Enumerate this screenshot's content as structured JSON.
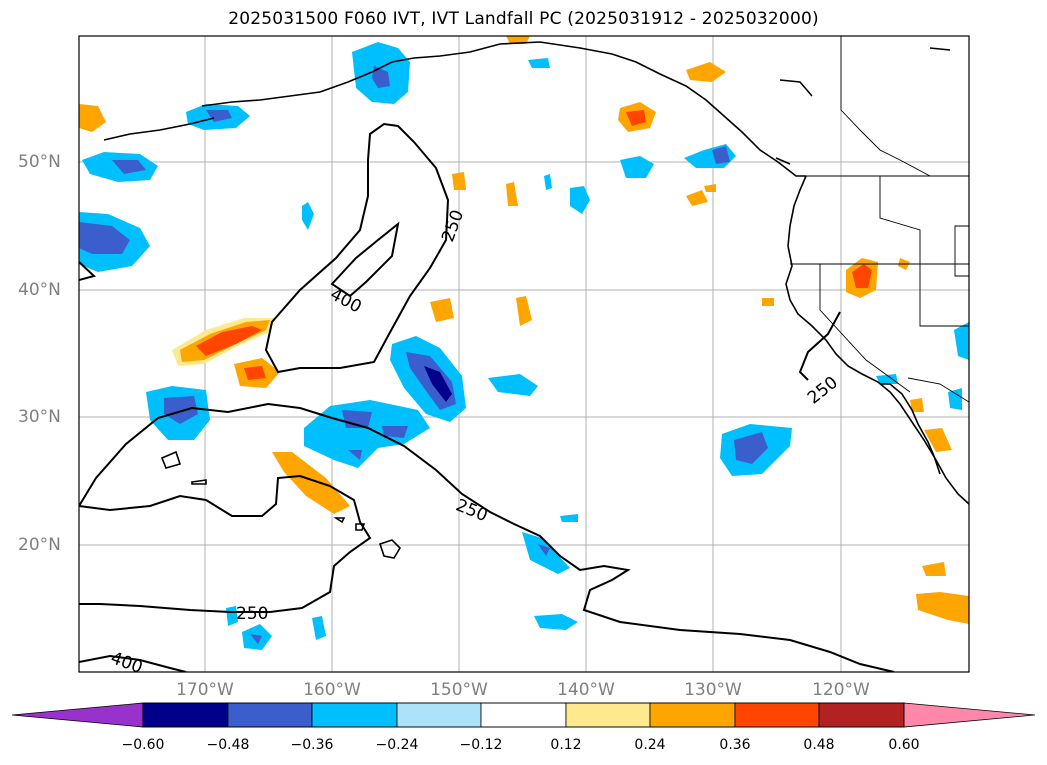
{
  "title": "2025031500 F060 IVT, IVT Landfall PC (2025031912 - 2025032000)",
  "map": {
    "lat_labels": [
      "50°N",
      "40°N",
      "30°N",
      "20°N"
    ],
    "lon_labels": [
      "170°W",
      "160°W",
      "150°W",
      "140°W",
      "130°W",
      "120°W"
    ],
    "contour_labels": [
      "250",
      "400",
      "250",
      "250",
      "250",
      "400"
    ]
  },
  "colorbar": {
    "ticks": [
      "−0.60",
      "−0.48",
      "−0.36",
      "−0.24",
      "−0.12",
      "0.12",
      "0.24",
      "0.36",
      "0.48",
      "0.60"
    ],
    "colors": [
      "#9932CC",
      "#00008B",
      "#3A5FCD",
      "#00BFFF",
      "#ADE3FA",
      "#FFFFFF",
      "#FFE98F",
      "#FFA500",
      "#FF4500",
      "#B22222",
      "#FF88AA"
    ]
  }
}
